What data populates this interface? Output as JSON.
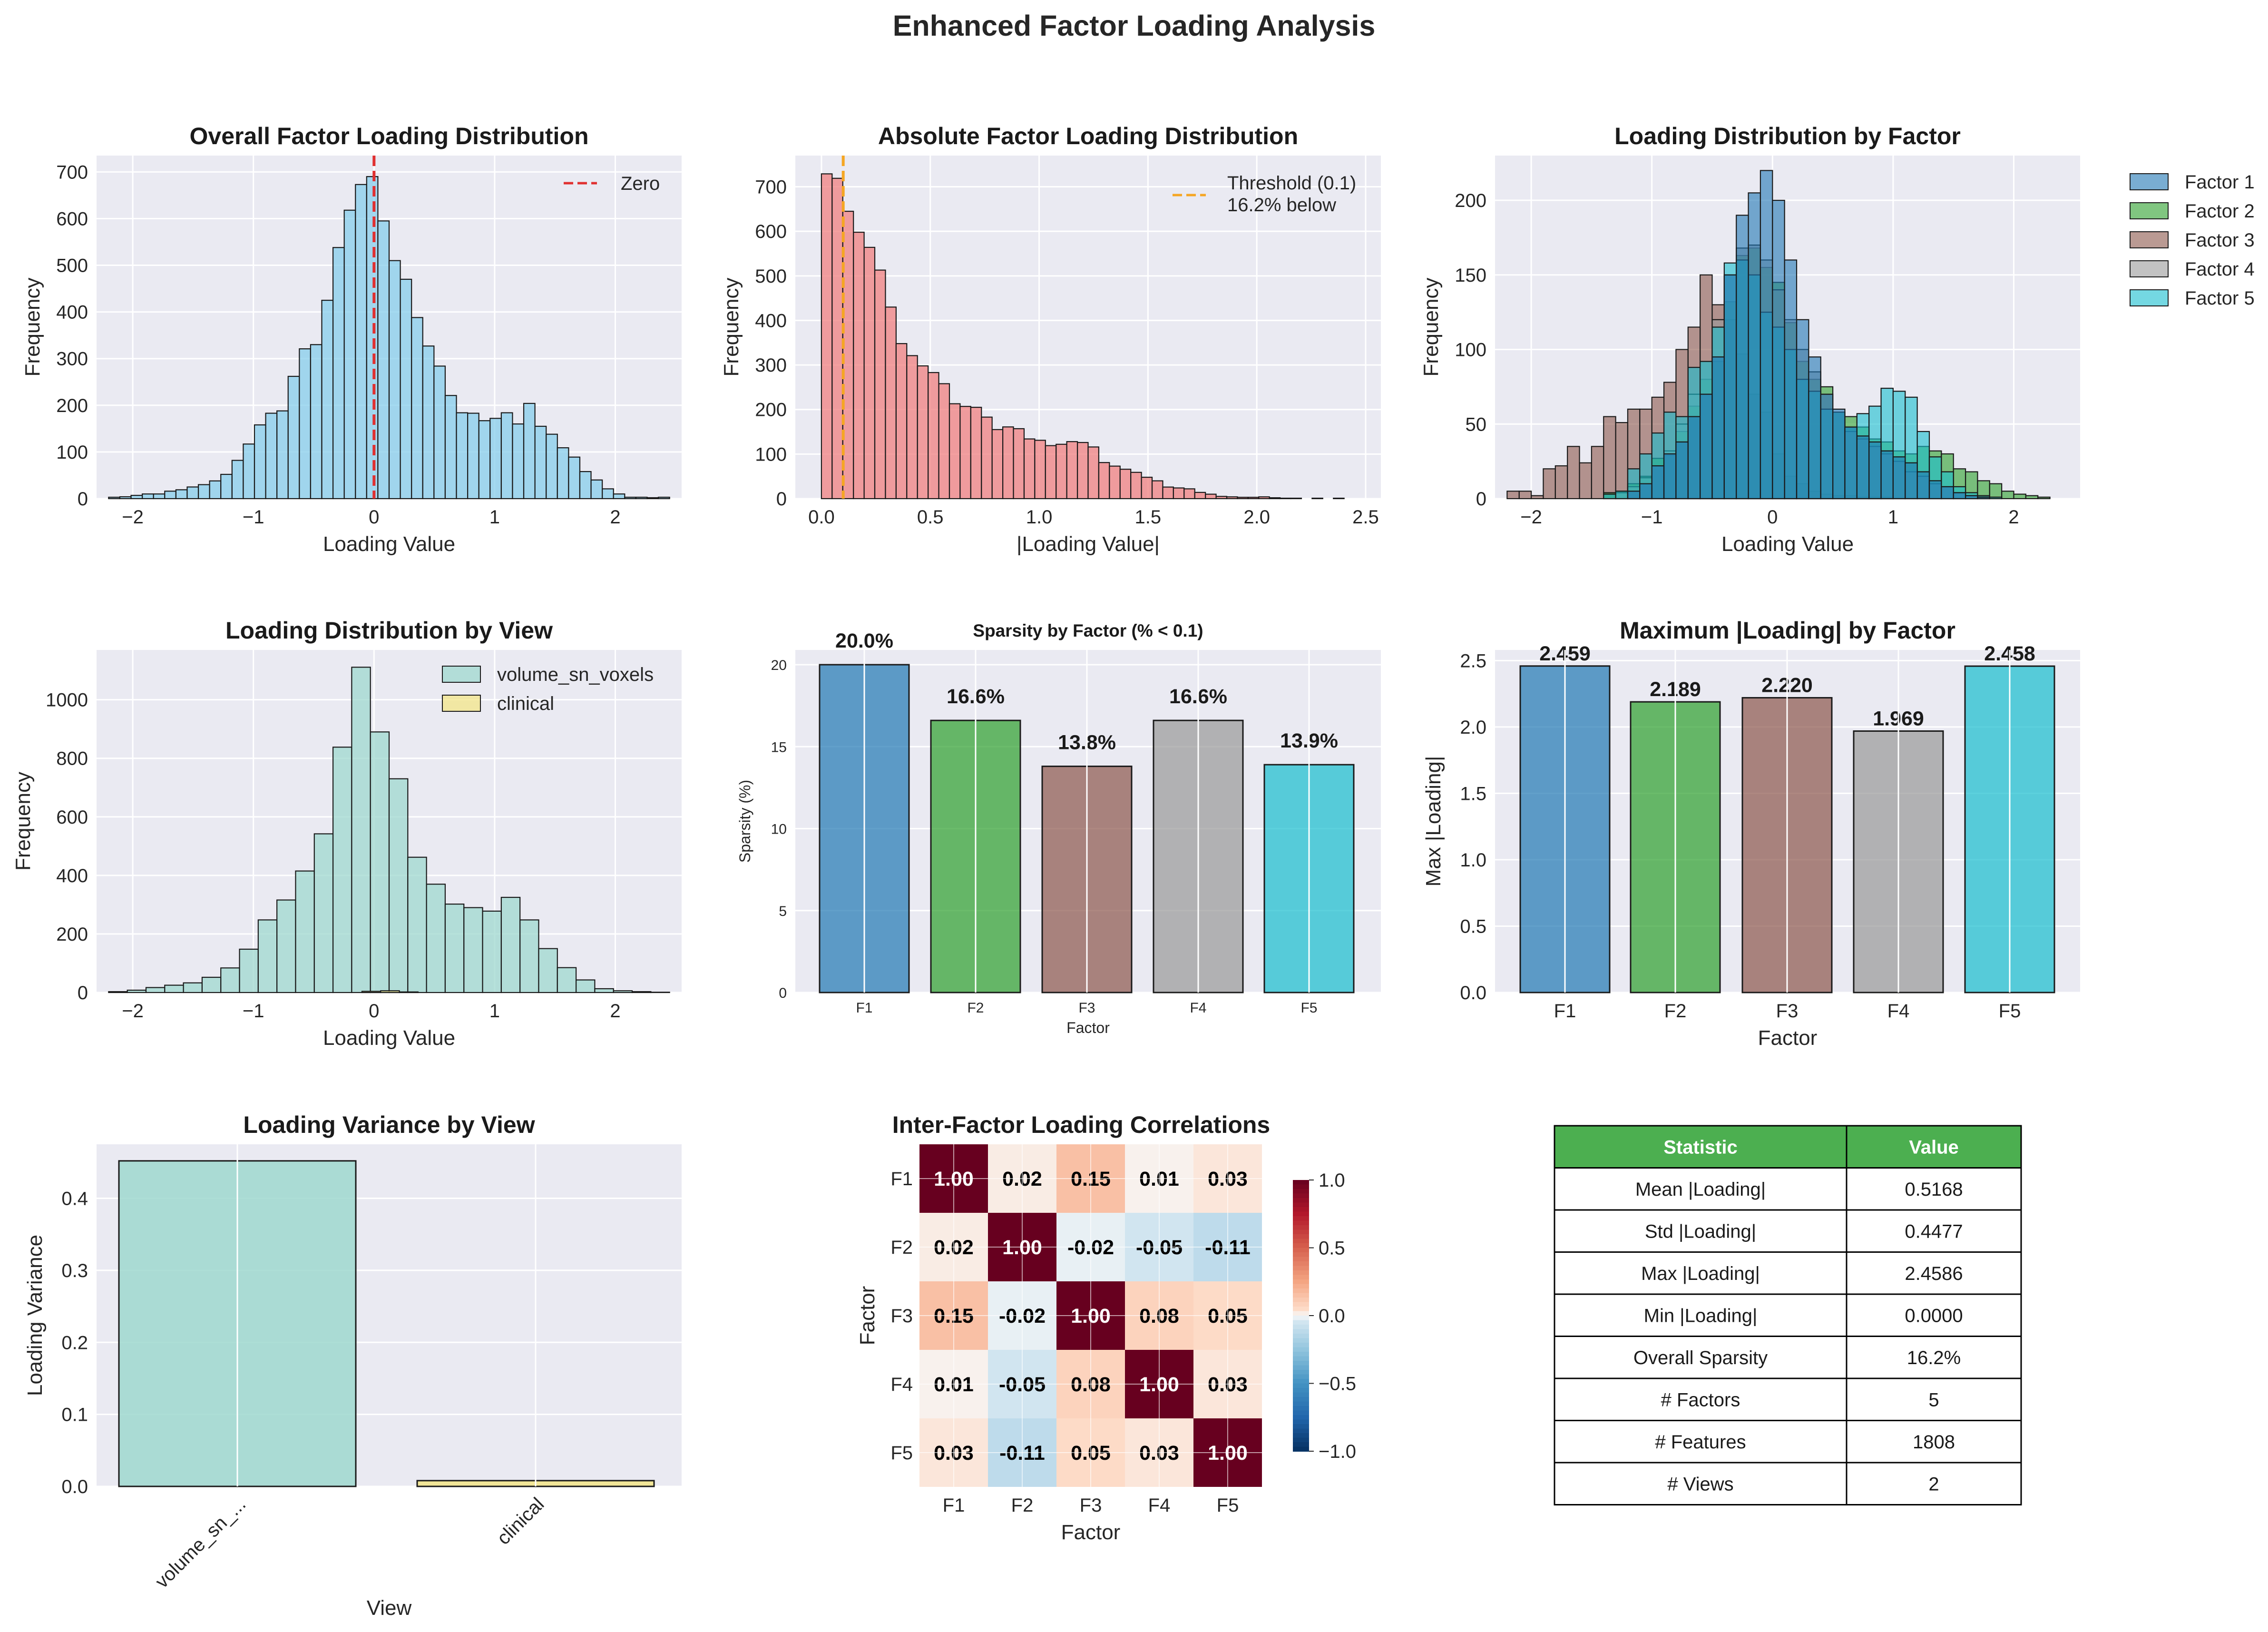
{
  "figure_title": "Enhanced Factor Loading Analysis",
  "chart_data": [
    {
      "id": "overall",
      "type": "histogram",
      "title": "Overall Factor Loading Distribution",
      "xlabel": "Loading Value",
      "ylabel": "Frequency",
      "xlim": [
        -2.3,
        2.55
      ],
      "ylim": [
        0,
        735
      ],
      "xticks": [
        -2,
        -1,
        0,
        1,
        2
      ],
      "yticks": [
        0,
        100,
        200,
        300,
        400,
        500,
        600,
        700
      ],
      "bin_start": -2.2,
      "bin_width": 0.093,
      "counts": [
        3,
        4,
        7,
        10,
        10,
        16,
        19,
        25,
        30,
        38,
        52,
        82,
        117,
        158,
        183,
        188,
        262,
        321,
        330,
        425,
        538,
        618,
        673,
        690,
        595,
        510,
        470,
        388,
        327,
        284,
        221,
        184,
        183,
        167,
        172,
        184,
        160,
        204,
        155,
        138,
        109,
        89,
        58,
        40,
        21,
        10,
        3,
        3,
        2,
        3
      ],
      "color": "#87ceeb",
      "reference_line": {
        "x": 0,
        "label": "Zero",
        "color": "#e03030"
      },
      "legend": "top-right"
    },
    {
      "id": "absolute",
      "type": "histogram",
      "title": "Absolute Factor Loading Distribution",
      "xlabel": "|Loading Value|",
      "ylabel": "Frequency",
      "xlim": [
        -0.12,
        2.57
      ],
      "ylim": [
        0,
        770
      ],
      "xticks": [
        0.0,
        0.5,
        1.0,
        1.5,
        2.0,
        2.5
      ],
      "yticks": [
        0,
        100,
        200,
        300,
        400,
        500,
        600,
        700
      ],
      "bin_start": 0.0,
      "bin_width": 0.049,
      "counts": [
        729,
        719,
        645,
        598,
        564,
        513,
        430,
        348,
        321,
        298,
        283,
        258,
        213,
        207,
        205,
        183,
        155,
        161,
        157,
        134,
        131,
        119,
        122,
        128,
        126,
        116,
        81,
        73,
        66,
        59,
        48,
        40,
        26,
        24,
        22,
        14,
        10,
        5,
        4,
        3,
        3,
        4,
        2,
        1,
        1,
        0,
        1,
        0,
        1,
        0
      ],
      "color": "#f08080",
      "reference_line": {
        "x": 0.1,
        "label": "Threshold (0.1)",
        "label2": "16.2% below",
        "color": "#f5a623"
      },
      "legend": "top-right"
    },
    {
      "id": "by_factor",
      "type": "histogram",
      "title": "Loading Distribution by Factor",
      "xlabel": "Loading Value",
      "ylabel": "Frequency",
      "xlim": [
        -2.3,
        2.55
      ],
      "ylim": [
        0,
        230
      ],
      "xticks": [
        -2,
        -1,
        0,
        1,
        2
      ],
      "yticks": [
        0,
        50,
        100,
        150,
        200
      ],
      "bin_width": 0.1,
      "series": [
        {
          "name": "Factor 3",
          "color": "#8c564b",
          "bin_start": -2.2,
          "counts": [
            5,
            5,
            2,
            20,
            22,
            35,
            24,
            35,
            55,
            51,
            60,
            60,
            68,
            78,
            100,
            115,
            150,
            130,
            120,
            97,
            70,
            58,
            30,
            15,
            10,
            5,
            3,
            2,
            2,
            1,
            1,
            1,
            0,
            0,
            0,
            0,
            0,
            0,
            0,
            0,
            0,
            0,
            0,
            0,
            0
          ]
        },
        {
          "name": "Factor 2",
          "color": "#2ca02c",
          "bin_start": -1.4,
          "counts": [
            4,
            5,
            10,
            15,
            27,
            29,
            45,
            62,
            80,
            92,
            132,
            163,
            168,
            155,
            145,
            118,
            92,
            80,
            75,
            58,
            55,
            48,
            40,
            38,
            32,
            30,
            35,
            32,
            30,
            20,
            18,
            12,
            10,
            5,
            3,
            2,
            1
          ]
        },
        {
          "name": "Factor 4",
          "color": "#999999",
          "bin_start": -1.3,
          "counts": [
            4,
            8,
            14,
            22,
            32,
            50,
            70,
            92,
            120,
            150,
            168,
            170,
            160,
            140,
            120,
            100,
            85,
            70,
            58,
            45,
            40,
            35,
            30,
            25,
            18,
            15,
            10,
            8,
            4,
            2,
            1
          ]
        },
        {
          "name": "Factor 5",
          "color": "#17becf",
          "bin_start": -1.4,
          "counts": [
            3,
            5,
            20,
            30,
            44,
            58,
            55,
            88,
            92,
            115,
            158,
            160,
            150,
            125,
            115,
            100,
            80,
            72,
            60,
            58,
            48,
            57,
            62,
            74,
            72,
            68,
            45,
            28,
            18,
            8,
            4,
            2,
            1
          ]
        },
        {
          "name": "Factor 1",
          "color": "#1f77b4",
          "bin_start": -1.2,
          "counts": [
            5,
            10,
            22,
            30,
            38,
            55,
            70,
            95,
            150,
            190,
            205,
            220,
            200,
            160,
            120,
            95,
            70,
            60,
            48,
            42,
            38,
            32,
            28,
            24,
            18,
            12,
            8,
            4,
            2,
            1
          ]
        }
      ],
      "legend_order": [
        "Factor 1",
        "Factor 2",
        "Factor 3",
        "Factor 4",
        "Factor 5"
      ],
      "legend": "outside-right"
    },
    {
      "id": "by_view",
      "type": "histogram",
      "title": "Loading Distribution by View",
      "xlabel": "Loading Value",
      "ylabel": "Frequency",
      "xlim": [
        -2.3,
        2.55
      ],
      "ylim": [
        0,
        1170
      ],
      "xticks": [
        -2,
        -1,
        0,
        1,
        2
      ],
      "yticks": [
        0,
        200,
        400,
        600,
        800,
        1000
      ],
      "bin_width": 0.155,
      "series": [
        {
          "name": "volume_sn_voxels",
          "color": "#9fd8cf",
          "bin_start": -2.2,
          "counts": [
            3,
            8,
            17,
            25,
            33,
            52,
            84,
            148,
            248,
            316,
            415,
            542,
            838,
            1111,
            890,
            730,
            462,
            370,
            302,
            290,
            278,
            325,
            248,
            150,
            85,
            43,
            13,
            6,
            3,
            1
          ]
        },
        {
          "name": "clinical",
          "color": "#f3e588",
          "bin_start": -0.1,
          "counts": [
            4,
            6,
            2
          ]
        }
      ],
      "legend": "top-right"
    },
    {
      "id": "sparsity",
      "type": "bar",
      "title": "Sparsity by Factor (% < 0.1)",
      "xlabel": "Factor",
      "ylabel": "Sparsity (%)",
      "categories": [
        "F1",
        "F2",
        "F3",
        "F4",
        "F5"
      ],
      "values": [
        20.0,
        16.6,
        13.8,
        16.6,
        13.9
      ],
      "labels": [
        "20.0%",
        "16.6%",
        "13.8%",
        "16.6%",
        "13.9%"
      ],
      "colors": [
        "#1f77b4",
        "#2ca02c",
        "#8c564b",
        "#999999",
        "#17becf"
      ],
      "ylim": [
        0,
        20.9
      ],
      "yticks": [
        0,
        5,
        10,
        15,
        20
      ]
    },
    {
      "id": "max_loading",
      "type": "bar",
      "title": "Maximum |Loading| by Factor",
      "xlabel": "Factor",
      "ylabel": "Max |Loading|",
      "categories": [
        "F1",
        "F2",
        "F3",
        "F4",
        "F5"
      ],
      "values": [
        2.459,
        2.189,
        2.22,
        1.969,
        2.458
      ],
      "labels": [
        "2.459",
        "2.189",
        "2.220",
        "1.969",
        "2.458"
      ],
      "colors": [
        "#1f77b4",
        "#2ca02c",
        "#8c564b",
        "#999999",
        "#17becf"
      ],
      "ylim": [
        0,
        2.58
      ],
      "yticks": [
        0.0,
        0.5,
        1.0,
        1.5,
        2.0,
        2.5
      ]
    },
    {
      "id": "variance",
      "type": "bar",
      "title": "Loading Variance by View",
      "xlabel": "View",
      "ylabel": "Loading Variance",
      "categories": [
        "volume_sn_...",
        "clinical"
      ],
      "values": [
        0.452,
        0.008
      ],
      "colors": [
        "#9fd8cf",
        "#f3e588"
      ],
      "ylim": [
        0,
        0.475
      ],
      "yticks": [
        0.0,
        0.1,
        0.2,
        0.3,
        0.4
      ]
    },
    {
      "id": "correlations",
      "type": "heatmap",
      "title": "Inter-Factor Loading Correlations",
      "xlabel": "Factor",
      "ylabel": "Factor",
      "categories": [
        "F1",
        "F2",
        "F3",
        "F4",
        "F5"
      ],
      "matrix": [
        [
          1.0,
          0.02,
          0.15,
          0.01,
          0.03
        ],
        [
          0.02,
          1.0,
          -0.02,
          -0.05,
          -0.11
        ],
        [
          0.15,
          -0.02,
          1.0,
          0.08,
          0.05
        ],
        [
          0.01,
          -0.05,
          0.08,
          1.0,
          0.03
        ],
        [
          0.03,
          -0.11,
          0.05,
          0.03,
          1.0
        ]
      ],
      "cell_labels": [
        [
          "1.00",
          "0.02",
          "0.15",
          "0.01",
          "0.03"
        ],
        [
          "0.02",
          "1.00",
          "-0.02",
          "-0.05",
          "-0.11"
        ],
        [
          "0.15",
          "-0.02",
          "1.00",
          "0.08",
          "0.05"
        ],
        [
          "0.01",
          "-0.05",
          "0.08",
          "1.00",
          "0.03"
        ],
        [
          "0.03",
          "-0.11",
          "0.05",
          "0.03",
          "1.00"
        ]
      ],
      "colormap": "RdBu_r",
      "vmin": -1.0,
      "vmax": 1.0,
      "colorbar_ticks": [
        "1.0",
        "0.5",
        "0.0",
        "−0.5",
        "−1.0"
      ]
    },
    {
      "id": "summary",
      "type": "table",
      "columns": [
        "Statistic",
        "Value"
      ],
      "header_color": "#4caf50",
      "rows": [
        [
          "Mean |Loading|",
          "0.5168"
        ],
        [
          "Std |Loading|",
          "0.4477"
        ],
        [
          "Max |Loading|",
          "2.4586"
        ],
        [
          "Min |Loading|",
          "0.0000"
        ],
        [
          "Overall Sparsity",
          "16.2%"
        ],
        [
          "# Factors",
          "5"
        ],
        [
          "# Features",
          "1808"
        ],
        [
          "# Views",
          "2"
        ]
      ]
    }
  ]
}
